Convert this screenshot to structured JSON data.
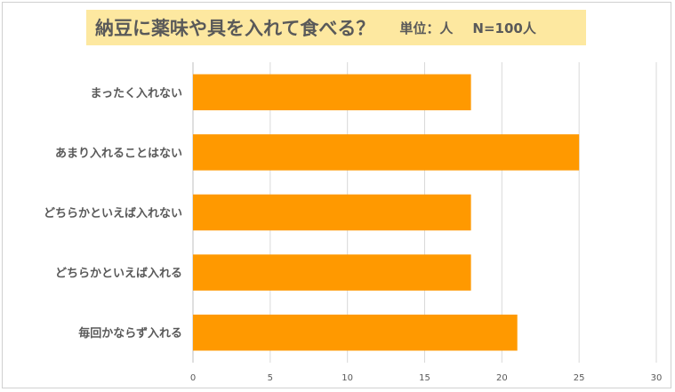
{
  "chart_data": {
    "type": "bar",
    "orientation": "horizontal",
    "title": "納豆に薬味や具を入れて食べる？",
    "unit_label": "単位：人",
    "sample_label": "N=100人",
    "categories": [
      "まったく入れない",
      "あまり入れることはない",
      "どちらかといえば入れない",
      "どちらかといえば入れる",
      "毎回かならず入れる"
    ],
    "values": [
      18,
      25,
      18,
      18,
      21
    ],
    "xlim": [
      0,
      30
    ],
    "x_ticks": [
      "0",
      "5",
      "10",
      "15",
      "20",
      "25",
      "30"
    ],
    "grid": true,
    "bar_color": "#ff9900",
    "title_background": "#fde8a0",
    "text_color": "#595959"
  }
}
